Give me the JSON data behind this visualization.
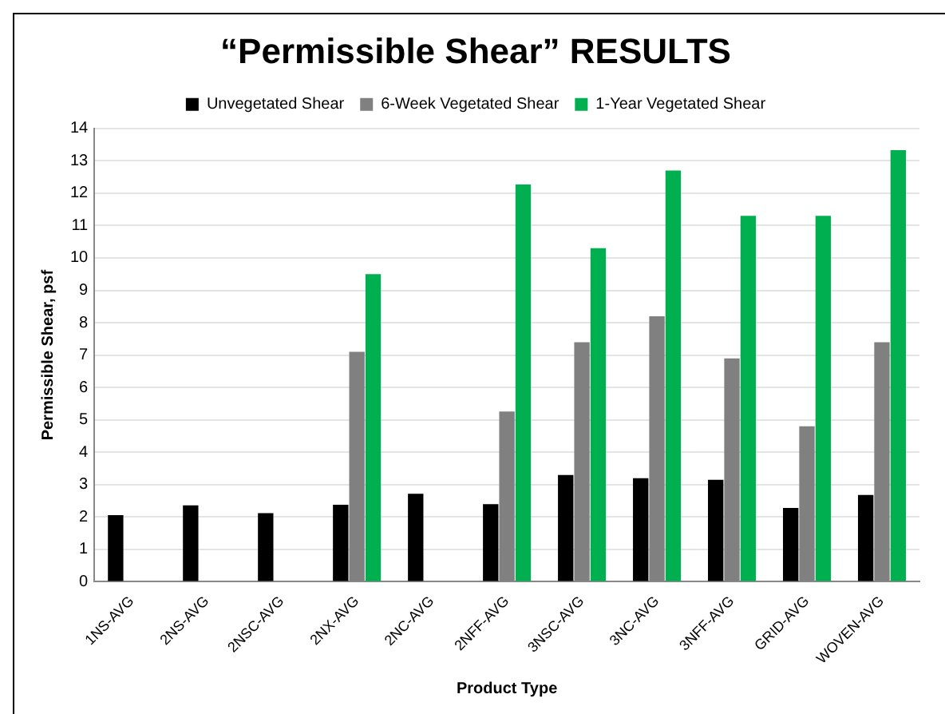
{
  "chart_data": {
    "type": "bar",
    "title": "“Permissible Shear” RESULTS",
    "xlabel": "Product Type",
    "ylabel": "Permissible Shear, psf",
    "categories": [
      "1NS-AVG",
      "2NS-AVG",
      "2NSC-AVG",
      "2NX-AVG",
      "2NC-AVG",
      "2NFF-AVG",
      "3NSC-AVG",
      "3NC-AVG",
      "3NFF-AVG",
      "GRID-AVG",
      "WOVEN-AVG"
    ],
    "series": [
      {
        "name": "Unvegetated Shear",
        "color": "#000000",
        "values": [
          2.06,
          2.36,
          2.12,
          2.38,
          2.72,
          2.4,
          3.3,
          3.2,
          3.15,
          2.28,
          2.68
        ]
      },
      {
        "name": "6-Week Vegetated Shear",
        "color": "#808080",
        "values": [
          null,
          null,
          null,
          7.1,
          null,
          5.26,
          7.4,
          8.2,
          6.9,
          4.8,
          7.4
        ]
      },
      {
        "name": "1-Year Vegetated Shear",
        "color": "#00b050",
        "values": [
          null,
          null,
          null,
          9.5,
          null,
          12.27,
          10.3,
          12.7,
          11.3,
          11.3,
          13.33
        ]
      }
    ],
    "ylim": [
      0,
      14
    ],
    "yticks": [
      0,
      1,
      2,
      3,
      4,
      5,
      6,
      7,
      8,
      9,
      10,
      11,
      12,
      13,
      14
    ],
    "grid": "y",
    "legend": "top"
  }
}
